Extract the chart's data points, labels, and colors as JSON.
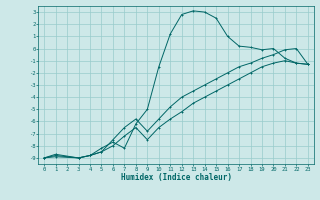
{
  "xlabel": "Humidex (Indice chaleur)",
  "bg_color": "#cde8e8",
  "grid_color": "#99cccc",
  "line_color": "#006666",
  "xlim": [
    -0.5,
    23.5
  ],
  "ylim": [
    -9.5,
    3.5
  ],
  "xticks": [
    0,
    1,
    2,
    3,
    4,
    5,
    6,
    7,
    8,
    9,
    10,
    11,
    12,
    13,
    14,
    15,
    16,
    17,
    18,
    19,
    20,
    21,
    22,
    23
  ],
  "yticks": [
    3,
    2,
    1,
    0,
    -1,
    -2,
    -3,
    -4,
    -5,
    -6,
    -7,
    -8,
    -9
  ],
  "line1_x": [
    0,
    1,
    3,
    4,
    5,
    6,
    7,
    8,
    9,
    10,
    11,
    12,
    13,
    14,
    15,
    16,
    17,
    18,
    19,
    20,
    21,
    22,
    23
  ],
  "line1_y": [
    -9,
    -8.7,
    -9,
    -8.8,
    -8.2,
    -7.7,
    -8.2,
    -6.2,
    -5.0,
    -1.5,
    1.2,
    2.8,
    3.1,
    3.0,
    2.5,
    1.0,
    0.2,
    0.1,
    -0.1,
    0.0,
    -0.8,
    -1.2,
    -1.3
  ],
  "line2_x": [
    0,
    1,
    3,
    4,
    5,
    6,
    7,
    8,
    9,
    10,
    11,
    12,
    13,
    14,
    15,
    16,
    17,
    18,
    19,
    20,
    21,
    22,
    23
  ],
  "line2_y": [
    -9,
    -8.8,
    -9,
    -8.8,
    -8.5,
    -7.5,
    -6.5,
    -5.8,
    -6.8,
    -5.8,
    -4.8,
    -4.0,
    -3.5,
    -3.0,
    -2.5,
    -2.0,
    -1.5,
    -1.2,
    -0.8,
    -0.5,
    -0.1,
    0.0,
    -1.3
  ],
  "line3_x": [
    0,
    1,
    3,
    4,
    5,
    6,
    7,
    8,
    9,
    10,
    11,
    12,
    13,
    14,
    15,
    16,
    17,
    18,
    19,
    20,
    21,
    22,
    23
  ],
  "line3_y": [
    -9,
    -8.9,
    -9,
    -8.8,
    -8.5,
    -8.0,
    -7.2,
    -6.5,
    -7.5,
    -6.5,
    -5.8,
    -5.2,
    -4.5,
    -4.0,
    -3.5,
    -3.0,
    -2.5,
    -2.0,
    -1.5,
    -1.2,
    -1.0,
    -1.2,
    -1.3
  ]
}
